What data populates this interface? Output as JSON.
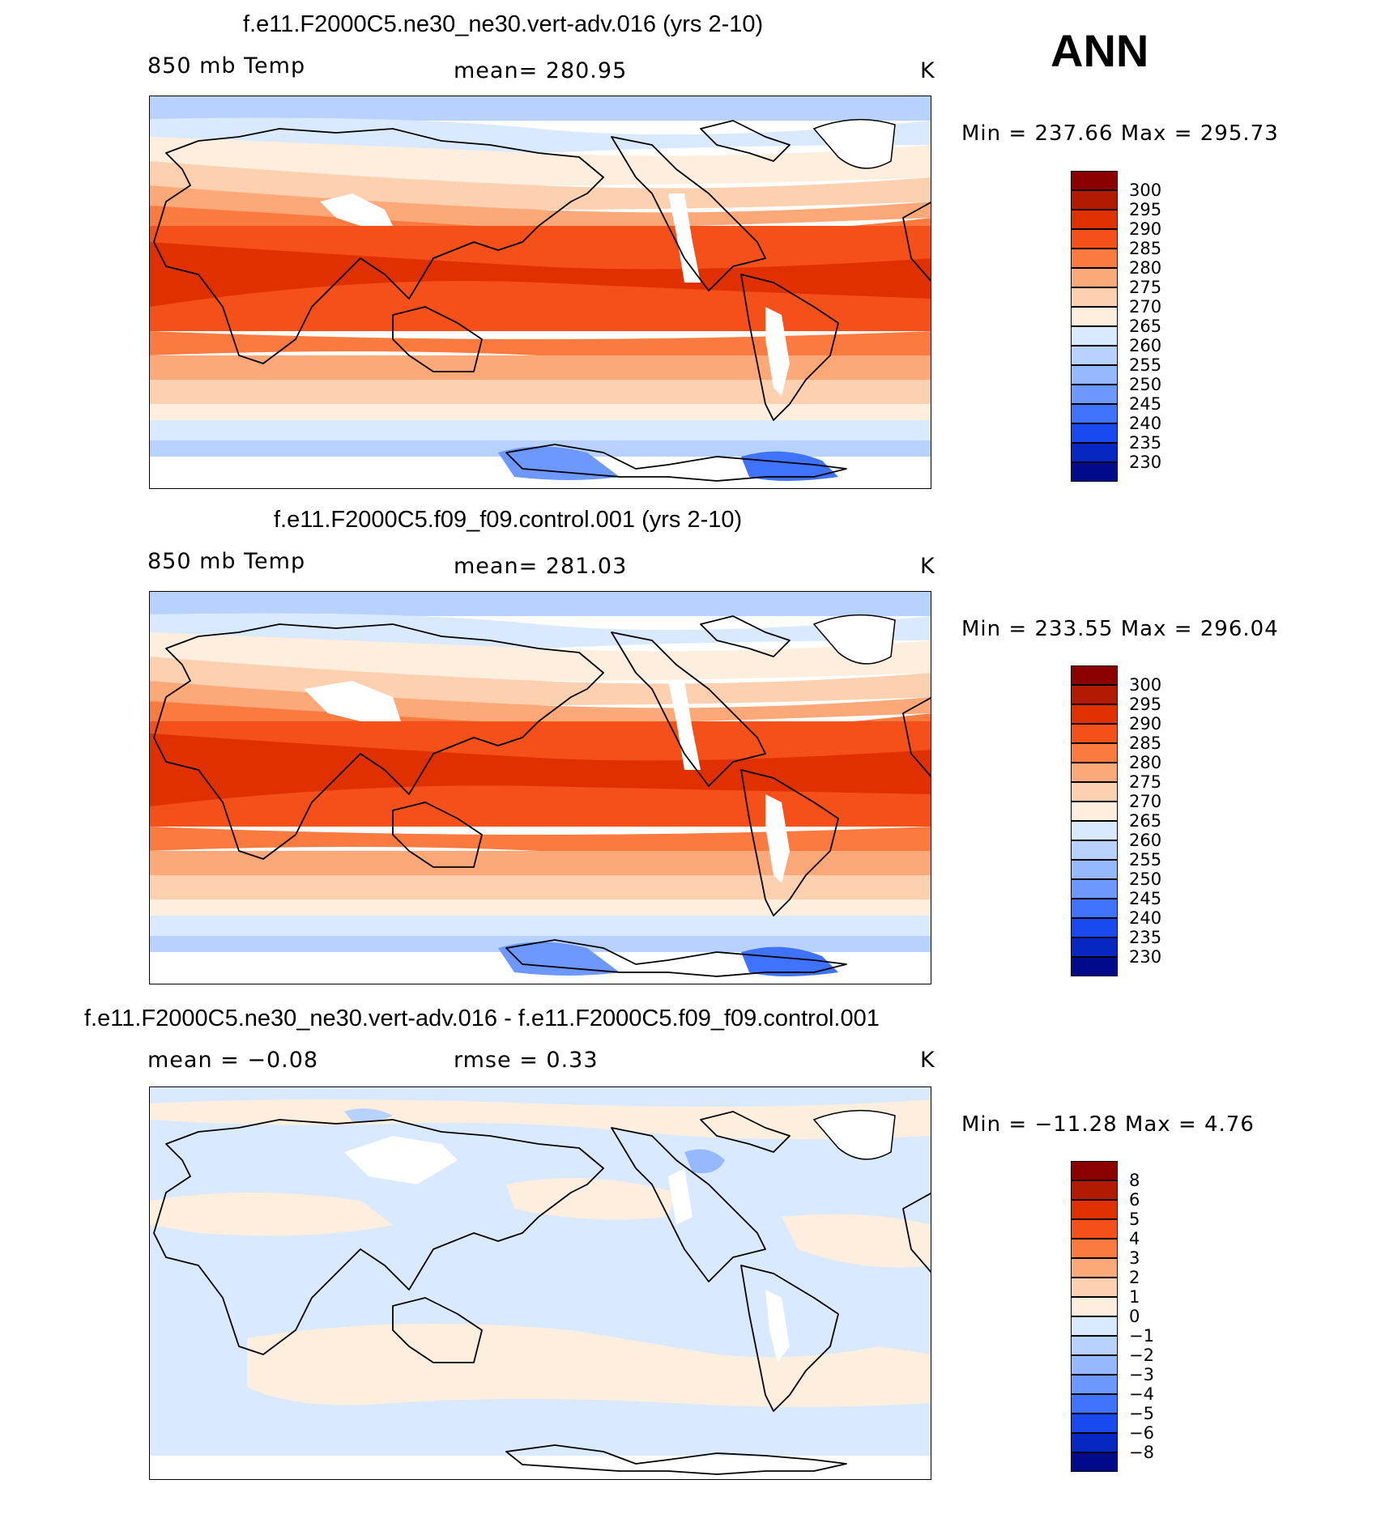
{
  "season": "ANN",
  "panels": [
    {
      "title": "f.e11.F2000C5.ne30_ne30.vert-adv.016 (yrs 2-10)",
      "left_label": "850 mb Temp",
      "center_label": "mean= 280.95",
      "units": "K",
      "minmax": "Min = 237.66 Max = 295.73",
      "colorbar": {
        "colors": [
          "#8b0000",
          "#b31b00",
          "#e03000",
          "#f5501a",
          "#fa7a40",
          "#fda878",
          "#fdd0b0",
          "#fdeedd",
          "#d9e9ff",
          "#b7d2ff",
          "#95b8ff",
          "#6c98ff",
          "#3f72ff",
          "#184af0",
          "#0628c0",
          "#000a8a"
        ],
        "labels": [
          "300",
          "295",
          "290",
          "285",
          "280",
          "275",
          "270",
          "265",
          "260",
          "255",
          "250",
          "245",
          "240",
          "235",
          "230"
        ]
      }
    },
    {
      "title": "f.e11.F2000C5.f09_f09.control.001 (yrs 2-10)",
      "left_label": "850 mb Temp",
      "center_label": "mean= 281.03",
      "units": "K",
      "minmax": "Min = 233.55 Max = 296.04",
      "colorbar": {
        "colors": [
          "#8b0000",
          "#b31b00",
          "#e03000",
          "#f5501a",
          "#fa7a40",
          "#fda878",
          "#fdd0b0",
          "#fdeedd",
          "#d9e9ff",
          "#b7d2ff",
          "#95b8ff",
          "#6c98ff",
          "#3f72ff",
          "#184af0",
          "#0628c0",
          "#000a8a"
        ],
        "labels": [
          "300",
          "295",
          "290",
          "285",
          "280",
          "275",
          "270",
          "265",
          "260",
          "255",
          "250",
          "245",
          "240",
          "235",
          "230"
        ]
      }
    },
    {
      "title": "f.e11.F2000C5.ne30_ne30.vert-adv.016 - f.e11.F2000C5.f09_f09.control.001",
      "left_label": "mean = −0.08",
      "center_label": "rmse = 0.33",
      "units": "K",
      "minmax": "Min = −11.28 Max = 4.76",
      "colorbar": {
        "colors": [
          "#8b0000",
          "#b31b00",
          "#e03000",
          "#f5501a",
          "#fa7a40",
          "#fda878",
          "#fdd0b0",
          "#fdeedd",
          "#d9e9ff",
          "#b7d2ff",
          "#95b8ff",
          "#6c98ff",
          "#3f72ff",
          "#184af0",
          "#0628c0",
          "#000a8a"
        ],
        "labels": [
          "8",
          "6",
          "5",
          "4",
          "3",
          "2",
          "1",
          "0",
          "−1",
          "−2",
          "−3",
          "−4",
          "−5",
          "−6",
          "−8"
        ]
      }
    }
  ]
}
